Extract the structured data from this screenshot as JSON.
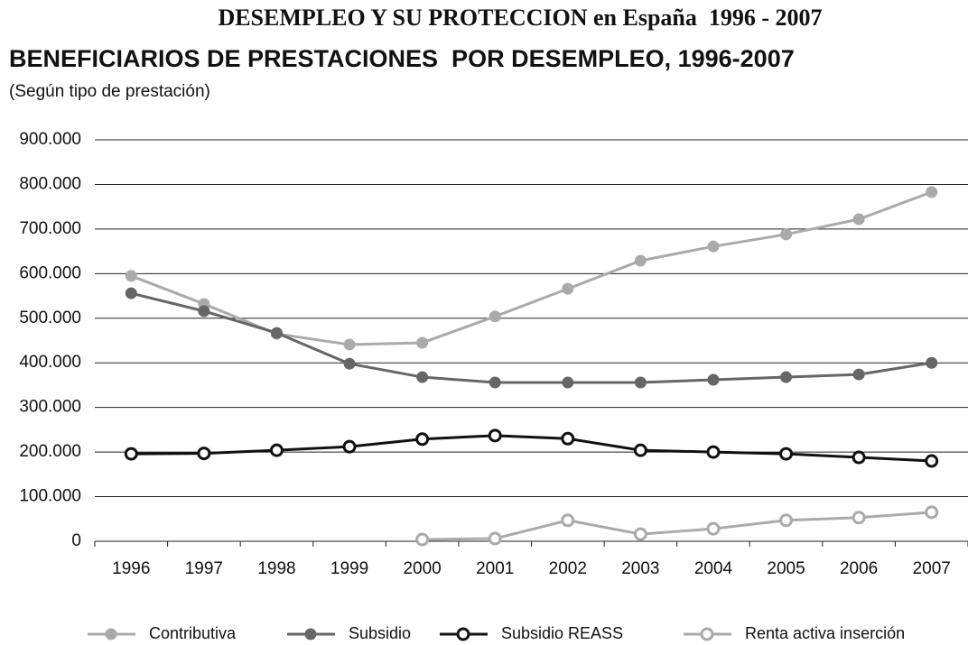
{
  "chart_data": {
    "type": "line",
    "title": "DESEMPLEO Y SU PROTECCION en España  1996 - 2007",
    "subtitle": "BENEFICIARIOS DE PRESTACIONES  POR DESEMPLEO, 1996-2007",
    "note": "(Según tipo de prestación)",
    "categories": [
      "1996",
      "1997",
      "1998",
      "1999",
      "2000",
      "2001",
      "2002",
      "2003",
      "2004",
      "2005",
      "2006",
      "2007"
    ],
    "series": [
      {
        "name": "Contributiva",
        "color": "#aaaaaa",
        "marker": "filled",
        "values": [
          595000,
          532000,
          465000,
          441000,
          445000,
          504000,
          566000,
          629000,
          661000,
          688000,
          722000,
          783000
        ]
      },
      {
        "name": "Subsidio",
        "color": "#666666",
        "marker": "filled",
        "values": [
          556000,
          516000,
          467000,
          398000,
          368000,
          356000,
          356000,
          356000,
          362000,
          368000,
          374000,
          400000
        ]
      },
      {
        "name": "Subsidio REASS",
        "color": "#111111",
        "marker": "open",
        "values": [
          196000,
          197000,
          204000,
          212000,
          229000,
          237000,
          230000,
          204000,
          200000,
          196000,
          188000,
          180000
        ]
      },
      {
        "name": "Renta activa inserción",
        "color": "#aaaaaa",
        "marker": "open",
        "values": [
          null,
          null,
          null,
          null,
          4000,
          6000,
          47000,
          16000,
          28000,
          47000,
          53000,
          65000
        ]
      }
    ],
    "ylim": [
      0,
      900000
    ],
    "yticks": [
      0,
      {
        "value": 100000,
        "label": "100.000"
      },
      {
        "value": 200000,
        "label": "200.000"
      },
      {
        "value": 300000,
        "label": "300.000"
      },
      {
        "value": 400000,
        "label": "400.000"
      },
      {
        "value": 500000,
        "label": "500.000"
      },
      {
        "value": 600000,
        "label": "600.000"
      },
      {
        "value": 700000,
        "label": "700.000"
      },
      {
        "value": 800000,
        "label": "800.000"
      },
      {
        "value": 900000,
        "label": "900.000"
      }
    ],
    "grid": true,
    "legend": "bottom"
  }
}
